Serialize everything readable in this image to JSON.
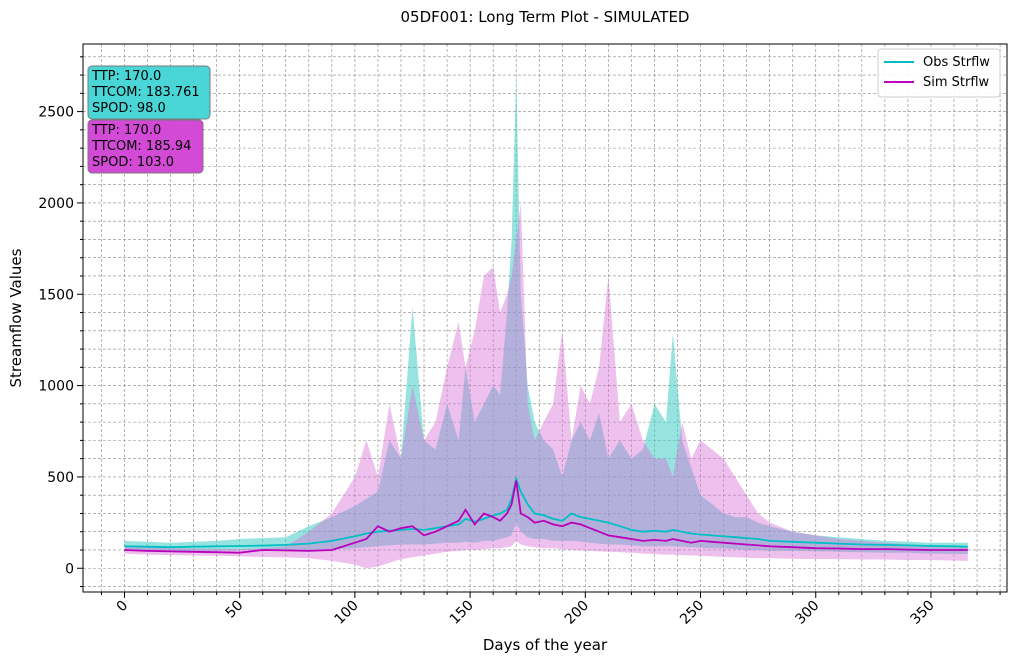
{
  "chart_data": {
    "type": "area",
    "title": "05DF001: Long Term Plot - SIMULATED",
    "xlabel": "Days of the year",
    "ylabel": "Streamflow Values",
    "xlim": [
      -18,
      383
    ],
    "ylim": [
      -130,
      2870
    ],
    "x_ticks": [
      0,
      50,
      100,
      150,
      200,
      250,
      300,
      350
    ],
    "y_ticks": [
      0,
      500,
      1000,
      1500,
      2000,
      2500
    ],
    "grid": true,
    "legend_position": "top-right",
    "colors": {
      "obs": "#00BFC4",
      "sim": "#BB00BB",
      "obs_fill": "#40CCC4",
      "sim_fill": "#D874D8"
    },
    "series": [
      {
        "name": "Obs Strflw",
        "x": [
          0,
          10,
          20,
          30,
          40,
          50,
          60,
          70,
          80,
          90,
          100,
          105,
          110,
          115,
          120,
          125,
          130,
          135,
          140,
          145,
          148,
          152,
          156,
          160,
          163,
          166,
          168,
          170,
          172,
          175,
          178,
          182,
          186,
          190,
          194,
          198,
          202,
          206,
          210,
          215,
          220,
          225,
          230,
          235,
          238,
          242,
          246,
          250,
          255,
          260,
          265,
          270,
          275,
          280,
          290,
          300,
          310,
          320,
          330,
          340,
          350,
          360,
          366
        ],
        "mean": [
          120,
          118,
          115,
          118,
          120,
          122,
          124,
          128,
          135,
          150,
          175,
          190,
          200,
          205,
          210,
          215,
          210,
          220,
          230,
          240,
          270,
          255,
          270,
          290,
          300,
          320,
          380,
          490,
          420,
          350,
          300,
          290,
          270,
          260,
          300,
          280,
          270,
          260,
          250,
          230,
          210,
          200,
          205,
          200,
          210,
          200,
          190,
          185,
          180,
          175,
          170,
          165,
          160,
          150,
          145,
          140,
          135,
          130,
          128,
          125,
          122,
          120,
          118
        ],
        "max": [
          150,
          145,
          140,
          145,
          150,
          160,
          165,
          170,
          230,
          280,
          340,
          380,
          420,
          700,
          600,
          1430,
          700,
          650,
          900,
          700,
          1100,
          800,
          900,
          1000,
          950,
          1400,
          1800,
          2700,
          1500,
          1000,
          800,
          700,
          650,
          500,
          700,
          800,
          700,
          850,
          600,
          700,
          600,
          650,
          900,
          800,
          1290,
          700,
          550,
          400,
          350,
          300,
          280,
          280,
          250,
          230,
          200,
          180,
          170,
          160,
          150,
          145,
          140,
          140,
          140
        ],
        "min": [
          100,
          95,
          90,
          92,
          95,
          98,
          100,
          102,
          100,
          105,
          110,
          115,
          120,
          125,
          130,
          130,
          130,
          135,
          140,
          140,
          145,
          140,
          150,
          150,
          160,
          170,
          180,
          250,
          200,
          170,
          160,
          160,
          150,
          150,
          150,
          145,
          140,
          135,
          130,
          130,
          125,
          120,
          120,
          120,
          120,
          118,
          115,
          112,
          110,
          108,
          105,
          100,
          100,
          95,
          95,
          92,
          90,
          88,
          85,
          85,
          80,
          78,
          78
        ]
      },
      {
        "name": "Sim Strflw",
        "x": [
          0,
          10,
          20,
          30,
          40,
          50,
          60,
          70,
          80,
          90,
          100,
          105,
          110,
          115,
          120,
          125,
          130,
          135,
          140,
          145,
          148,
          152,
          156,
          160,
          163,
          166,
          168,
          170,
          172,
          175,
          178,
          182,
          186,
          190,
          194,
          198,
          202,
          206,
          210,
          215,
          220,
          225,
          230,
          235,
          238,
          242,
          246,
          250,
          255,
          260,
          265,
          270,
          275,
          280,
          290,
          300,
          310,
          320,
          330,
          340,
          350,
          360,
          366
        ],
        "mean": [
          100,
          95,
          92,
          90,
          88,
          85,
          100,
          98,
          95,
          100,
          140,
          160,
          230,
          200,
          220,
          230,
          180,
          200,
          230,
          260,
          320,
          240,
          300,
          280,
          260,
          300,
          350,
          480,
          300,
          280,
          250,
          260,
          240,
          230,
          250,
          240,
          220,
          200,
          180,
          170,
          160,
          150,
          155,
          150,
          160,
          150,
          140,
          150,
          145,
          140,
          135,
          130,
          125,
          120,
          115,
          110,
          108,
          105,
          105,
          102,
          100,
          100,
          100
        ],
        "max": [
          120,
          115,
          110,
          108,
          106,
          105,
          110,
          120,
          200,
          300,
          500,
          700,
          500,
          900,
          600,
          1000,
          700,
          800,
          1100,
          1350,
          1100,
          1300,
          1600,
          1650,
          1400,
          1500,
          1600,
          1800,
          2000,
          900,
          700,
          800,
          900,
          1300,
          700,
          1000,
          900,
          1100,
          1600,
          800,
          900,
          700,
          600,
          600,
          500,
          800,
          600,
          700,
          650,
          600,
          500,
          400,
          300,
          250,
          200,
          180,
          160,
          150,
          140,
          130,
          125,
          120,
          120
        ],
        "min": [
          80,
          75,
          72,
          70,
          68,
          65,
          62,
          60,
          55,
          40,
          20,
          0,
          10,
          30,
          50,
          60,
          70,
          80,
          90,
          95,
          100,
          100,
          105,
          110,
          110,
          115,
          120,
          150,
          130,
          120,
          115,
          110,
          110,
          105,
          100,
          98,
          95,
          92,
          90,
          88,
          85,
          80,
          78,
          75,
          75,
          72,
          70,
          68,
          65,
          62,
          60,
          58,
          55,
          55,
          52,
          50,
          50,
          48,
          48,
          45,
          45,
          42,
          40
        ]
      }
    ],
    "annotations": [
      {
        "id": "obs",
        "lines": [
          "TTP: 170.0",
          "TTCOM: 183.761",
          "SPOD: 98.0"
        ]
      },
      {
        "id": "sim",
        "lines": [
          "TTP: 170.0",
          "TTCOM: 185.94",
          "SPOD: 103.0"
        ]
      }
    ]
  }
}
